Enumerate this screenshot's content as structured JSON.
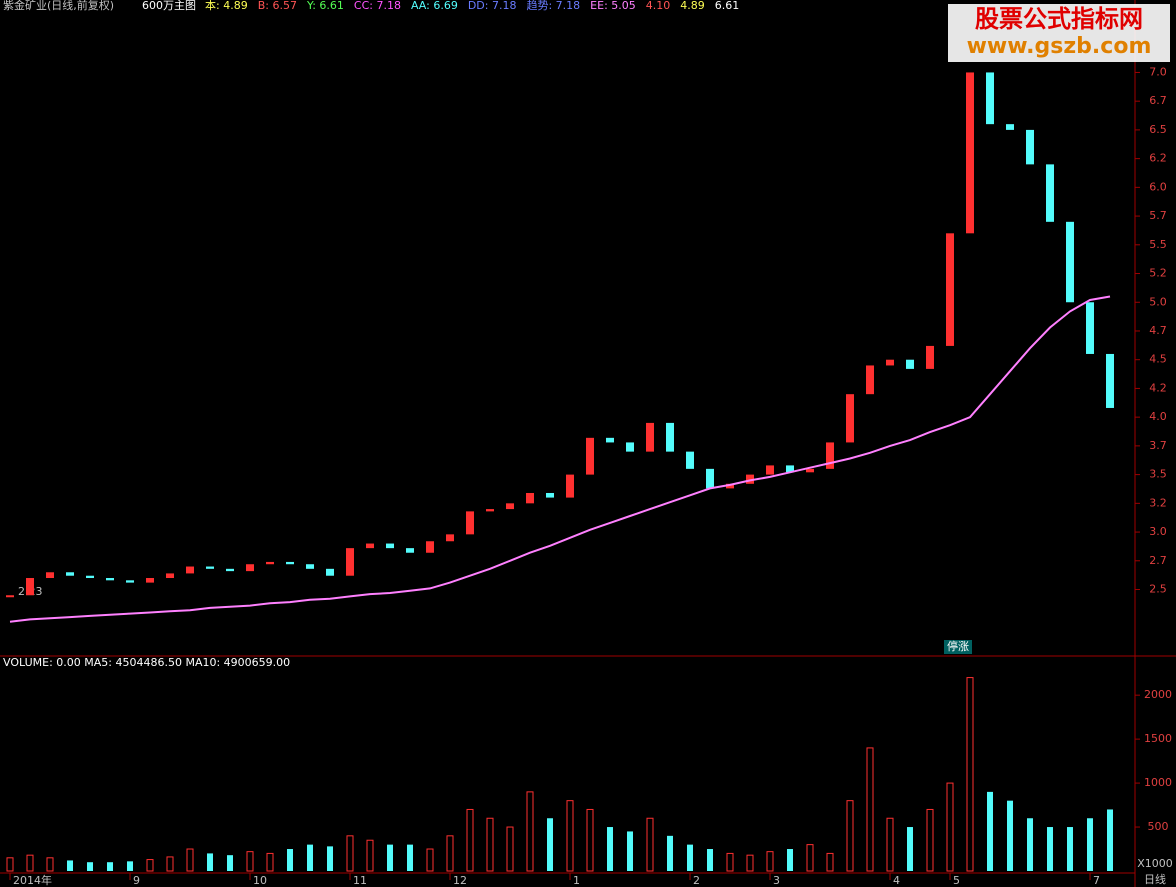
{
  "header": {
    "stock": "紫金矿业(日线,前复权)",
    "formula": "600万主图",
    "indicators": [
      {
        "text": "本: 4.89",
        "color": "#ffff54"
      },
      {
        "text": "B: 6.57",
        "color": "#ff5454"
      },
      {
        "text": "Y: 6.61",
        "color": "#54ff54"
      },
      {
        "text": "CC: 7.18",
        "color": "#ff54ff"
      },
      {
        "text": "AA: 6.69",
        "color": "#54ffff"
      },
      {
        "text": "DD: 7.18",
        "color": "#6a7cff"
      },
      {
        "text": "趋势: 7.18",
        "color": "#6a7cff"
      },
      {
        "text": "EE: 5.05",
        "color": "#ff80ff"
      },
      {
        "text": "4.10",
        "color": "#ff5454"
      },
      {
        "text": "4.89",
        "color": "#ffff54"
      },
      {
        "text": "6.61",
        "color": "#ffffff"
      }
    ]
  },
  "watermark": {
    "title": "股票公式指标网",
    "url": "www.gszb.com"
  },
  "annotations": {
    "low": "2.23",
    "badge": "停涨",
    "period": "日线"
  },
  "chart_data": [
    {
      "type": "price",
      "ylim": [
        1.93,
        7.5
      ],
      "yticks": [
        2.5,
        {
          "value": 2.75,
          "label": "2.7"
        },
        {
          "value": 3.0,
          "label": "3.0"
        },
        {
          "value": 3.25,
          "label": "3.2"
        },
        3.5,
        {
          "value": 3.75,
          "label": "3.7"
        },
        {
          "value": 4.0,
          "label": "4.0"
        },
        {
          "value": 4.25,
          "label": "4.2"
        },
        4.5,
        {
          "value": 4.75,
          "label": "4.7"
        },
        {
          "value": 5.0,
          "label": "5.0"
        },
        {
          "value": 5.25,
          "label": "5.2"
        },
        5.5,
        {
          "value": 5.75,
          "label": "5.7"
        },
        {
          "value": 6.0,
          "label": "6.0"
        },
        {
          "value": 6.25,
          "label": "6.2"
        },
        6.5,
        {
          "value": 6.75,
          "label": "6.7"
        },
        {
          "value": 7.0,
          "label": "7.0"
        }
      ],
      "categories": [
        "2014年",
        null,
        null,
        null,
        null,
        null,
        "9",
        null,
        null,
        null,
        null,
        null,
        "10",
        null,
        null,
        null,
        null,
        "11",
        null,
        null,
        null,
        null,
        "12",
        null,
        null,
        null,
        null,
        null,
        "1",
        null,
        null,
        null,
        null,
        null,
        "2",
        null,
        null,
        null,
        "3",
        null,
        null,
        null,
        null,
        null,
        "4",
        null,
        null,
        "5",
        null,
        null,
        null,
        null,
        null,
        null,
        "7",
        null
      ],
      "series": [
        {
          "name": "close",
          "up_color": "#ff3030",
          "down_color": "#54fcfc",
          "values": [
            2.45,
            2.6,
            2.65,
            2.62,
            2.6,
            2.58,
            2.56,
            2.6,
            2.64,
            2.7,
            2.68,
            2.66,
            2.72,
            2.74,
            2.72,
            2.68,
            2.62,
            2.86,
            2.9,
            2.86,
            2.82,
            2.92,
            2.98,
            3.18,
            3.2,
            3.25,
            3.34,
            3.3,
            3.5,
            3.82,
            3.78,
            3.7,
            3.95,
            3.7,
            3.55,
            3.38,
            3.42,
            3.5,
            3.58,
            3.52,
            3.55,
            3.78,
            4.2,
            4.45,
            4.5,
            4.42,
            4.62,
            5.6,
            7.0,
            6.55,
            6.5,
            6.2,
            5.7,
            5.0,
            4.55,
            4.08
          ]
        },
        {
          "name": "ma",
          "color": "#ff80ff",
          "values": [
            2.22,
            2.24,
            2.25,
            2.26,
            2.27,
            2.28,
            2.29,
            2.3,
            2.31,
            2.32,
            2.34,
            2.35,
            2.36,
            2.38,
            2.39,
            2.41,
            2.42,
            2.44,
            2.46,
            2.47,
            2.49,
            2.51,
            2.56,
            2.62,
            2.68,
            2.75,
            2.82,
            2.88,
            2.95,
            3.02,
            3.08,
            3.14,
            3.2,
            3.26,
            3.32,
            3.38,
            3.41,
            3.45,
            3.48,
            3.52,
            3.56,
            3.6,
            3.64,
            3.69,
            3.75,
            3.8,
            3.87,
            3.93,
            4.0,
            4.2,
            4.4,
            4.6,
            4.78,
            4.92,
            5.02,
            5.05
          ]
        }
      ]
    },
    {
      "type": "volume",
      "title": "VOLUME: 0.00  MA5: 4504486.50  MA10: 4900659.00",
      "unit": "X1000",
      "ylim": [
        0,
        2400
      ],
      "yticks": [
        500,
        1000,
        1500,
        2000
      ],
      "values": [
        150,
        180,
        150,
        120,
        100,
        100,
        110,
        130,
        160,
        250,
        200,
        180,
        220,
        200,
        250,
        300,
        280,
        400,
        350,
        300,
        300,
        250,
        400,
        700,
        600,
        500,
        900,
        600,
        800,
        700,
        500,
        450,
        600,
        400,
        300,
        250,
        200,
        180,
        220,
        250,
        300,
        200,
        800,
        1400,
        600,
        500,
        700,
        1000,
        2200,
        900,
        800,
        600,
        500,
        500,
        600,
        700
      ]
    }
  ]
}
